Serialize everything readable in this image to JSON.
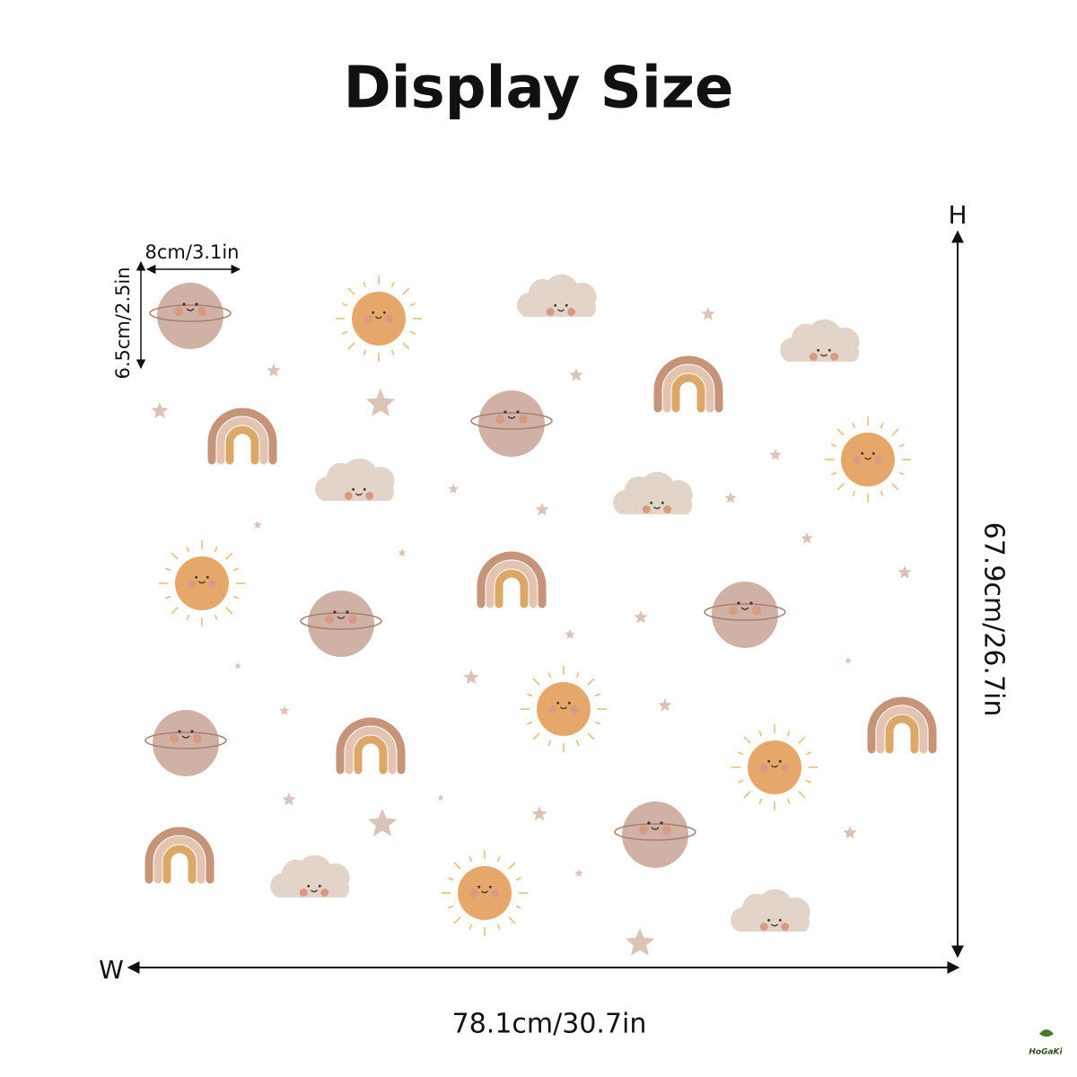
{
  "header": {
    "title": "Display Size"
  },
  "single_size": {
    "width_label": "8cm/3.1in",
    "height_label": "6.5cm/2.5in"
  },
  "overall_size": {
    "height_axis": "H",
    "width_axis": "W",
    "height_label": "67.9cm/26.7in",
    "width_label": "78.1cm/30.7in"
  },
  "brand": {
    "logo": "HoGaKi"
  }
}
